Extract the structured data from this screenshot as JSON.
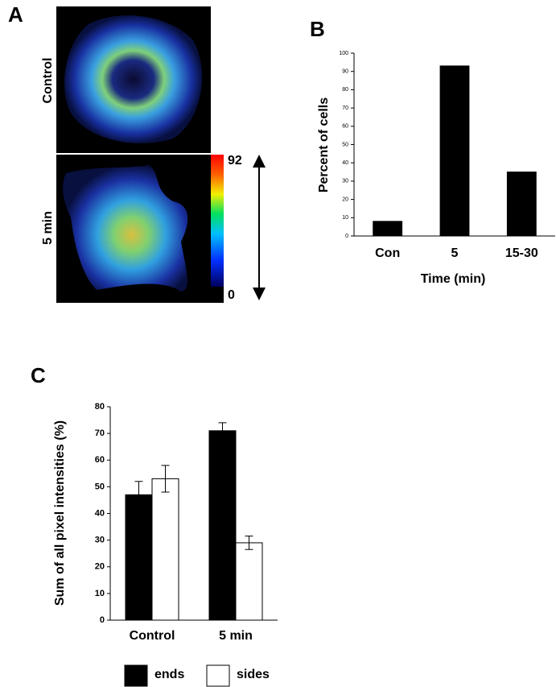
{
  "panel_a": {
    "label": "A",
    "row_labels": [
      "Control",
      "5 min"
    ],
    "colorbar": {
      "max": 92,
      "min": 0
    }
  },
  "chart_data": [
    {
      "type": "bar",
      "panel_label": "B",
      "categories": [
        "Con",
        "5",
        "15-30"
      ],
      "values": [
        8,
        93,
        35
      ],
      "color": "#000000",
      "ylabel": "Percent of cells",
      "xlabel": "Time (min)",
      "ylim": [
        0,
        100
      ],
      "yticks": [
        0,
        10,
        20,
        30,
        40,
        50,
        60,
        70,
        80,
        90,
        100
      ],
      "grid": false
    },
    {
      "type": "bar",
      "panel_label": "C",
      "categories": [
        "Control",
        "5 min"
      ],
      "series": [
        {
          "name": "ends",
          "color": "#000000",
          "values": [
            47,
            71
          ],
          "errors": [
            5,
            3
          ]
        },
        {
          "name": "sides",
          "color": "#ffffff",
          "values": [
            53,
            29
          ],
          "errors": [
            5,
            2.5
          ]
        }
      ],
      "ylabel": "Sum of all pixel intensities (%)",
      "ylim": [
        0,
        80
      ],
      "yticks": [
        0,
        10,
        20,
        30,
        40,
        50,
        60,
        70,
        80
      ],
      "grid": false,
      "legend": "bottom"
    }
  ]
}
